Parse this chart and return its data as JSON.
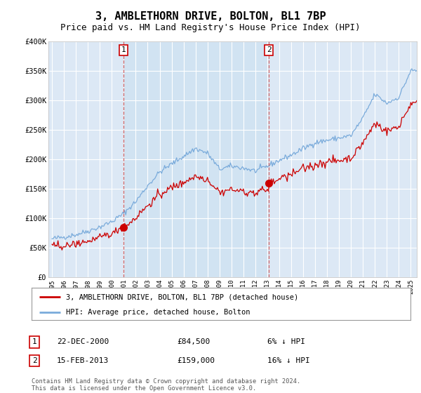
{
  "title": "3, AMBLETHORN DRIVE, BOLTON, BL1 7BP",
  "subtitle": "Price paid vs. HM Land Registry's House Price Index (HPI)",
  "ylim": [
    0,
    400000
  ],
  "yticks": [
    0,
    50000,
    100000,
    150000,
    200000,
    250000,
    300000,
    350000,
    400000
  ],
  "ytick_labels": [
    "£0",
    "£50K",
    "£100K",
    "£150K",
    "£200K",
    "£250K",
    "£300K",
    "£350K",
    "£400K"
  ],
  "hpi_color": "#7aabdb",
  "price_color": "#cc0000",
  "bg_color": "#dce8f5",
  "shade_color": "#c8dff0",
  "grid_color": "#ffffff",
  "sale1_date": 2001.0,
  "sale1_price": 84500,
  "sale1_label": "1",
  "sale2_date": 2013.12,
  "sale2_price": 159000,
  "sale2_label": "2",
  "legend_line1": "3, AMBLETHORN DRIVE, BOLTON, BL1 7BP (detached house)",
  "legend_line2": "HPI: Average price, detached house, Bolton",
  "table_row1": [
    "1",
    "22-DEC-2000",
    "£84,500",
    "6% ↓ HPI"
  ],
  "table_row2": [
    "2",
    "15-FEB-2013",
    "£159,000",
    "16% ↓ HPI"
  ],
  "footer": "Contains HM Land Registry data © Crown copyright and database right 2024.\nThis data is licensed under the Open Government Licence v3.0.",
  "title_fontsize": 11,
  "subtitle_fontsize": 9
}
